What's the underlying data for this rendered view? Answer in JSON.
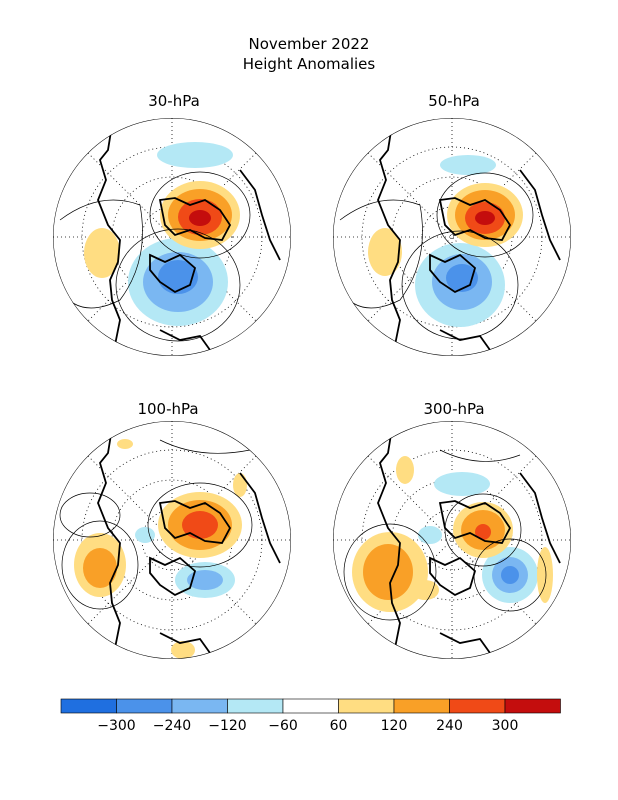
{
  "title": "November 2022",
  "subtitle": "Height Anomalies",
  "panels": [
    {
      "label": "30-hPa"
    },
    {
      "label": "50-hPa"
    },
    {
      "label": "100-hPa"
    },
    {
      "label": "300-hPa"
    }
  ],
  "colorbar": {
    "labels": [
      "−300",
      "−240",
      "−120",
      "−60",
      "60",
      "120",
      "240",
      "300"
    ],
    "colors": [
      "#1f6fe0",
      "#4b92ea",
      "#7ab7f2",
      "#b4e8f5",
      "#ffffff",
      "#ffdd82",
      "#f9a027",
      "#f04a17",
      "#c40d0d"
    ]
  }
}
